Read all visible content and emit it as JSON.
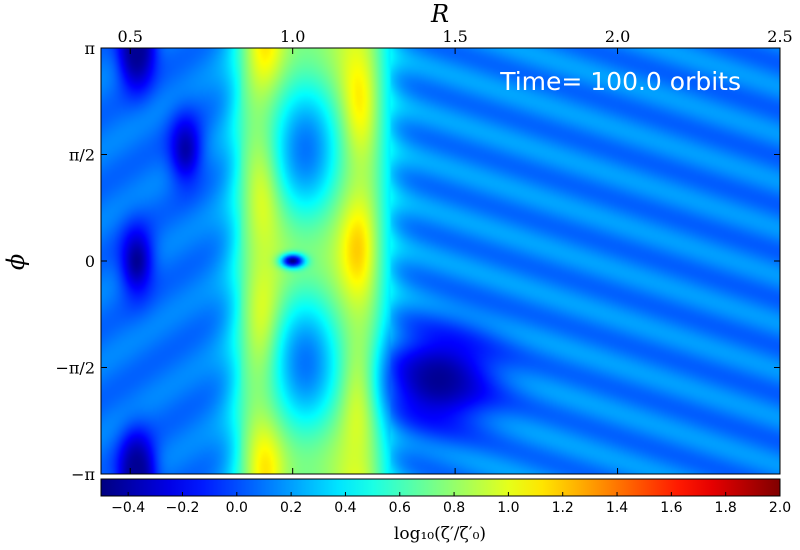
{
  "chart_data": {
    "type": "heatmap",
    "title": "",
    "xlabel": "R",
    "ylabel": "ϕ",
    "xaxis_position": "top",
    "xlim": [
      0.41,
      2.5
    ],
    "ylim": [
      -3.14159,
      3.14159
    ],
    "x_ticks": [
      {
        "value": 0.5,
        "label": "0.5"
      },
      {
        "value": 1.0,
        "label": "1.0"
      },
      {
        "value": 1.5,
        "label": "1.5"
      },
      {
        "value": 2.0,
        "label": "2.0"
      },
      {
        "value": 2.5,
        "label": "2.5"
      }
    ],
    "y_ticks": [
      {
        "value": 3.14159,
        "label": "π"
      },
      {
        "value": 1.5708,
        "label": "π/2"
      },
      {
        "value": 0,
        "label": "0"
      },
      {
        "value": -1.5708,
        "label": "−π/2"
      },
      {
        "value": -3.14159,
        "label": "−π"
      }
    ],
    "annotation": "Time= 100.0 orbits",
    "colorbar": {
      "label": "log₁₀(ζ′/ζ′₀)",
      "colormap": "jet",
      "range": [
        -0.5,
        2.0
      ],
      "orientation": "horizontal",
      "placement": "bottom",
      "ticks": [
        {
          "value": -0.4,
          "label": "−0.4"
        },
        {
          "value": -0.2,
          "label": "−0.2"
        },
        {
          "value": 0.0,
          "label": "0.0"
        },
        {
          "value": 0.2,
          "label": "0.2"
        },
        {
          "value": 0.4,
          "label": "0.4"
        },
        {
          "value": 0.6,
          "label": "0.6"
        },
        {
          "value": 0.8,
          "label": "0.8"
        },
        {
          "value": 1.0,
          "label": "1.0"
        },
        {
          "value": 1.2,
          "label": "1.2"
        },
        {
          "value": 1.4,
          "label": "1.4"
        },
        {
          "value": 1.6,
          "label": "1.6"
        },
        {
          "value": 1.8,
          "label": "1.8"
        },
        {
          "value": 2.0,
          "label": "2.0"
        }
      ]
    },
    "features": {
      "background_level": 0.15,
      "ring": {
        "r_inner": 0.84,
        "r_outer": 1.27,
        "level": 1.05
      },
      "ring_peaks": {
        "r": [
          0.92,
          1.2
        ],
        "level": 1.35
      },
      "vortices": [
        {
          "r": 1.04,
          "phi": 1.65,
          "level": 0.1
        },
        {
          "r": 1.04,
          "phi": -1.5,
          "level": 0.1
        }
      ],
      "planet": {
        "r": 1.0,
        "phi": 0.0,
        "level": -0.5
      },
      "inner_lows": [
        {
          "r": 0.52,
          "phi": 3.05,
          "level": -0.45
        },
        {
          "r": 0.52,
          "phi": 0.0,
          "level": -0.45
        },
        {
          "r": 0.52,
          "phi": -3.05,
          "level": -0.45
        },
        {
          "r": 0.67,
          "phi": 1.65,
          "level": -0.4
        }
      ],
      "wake_low": {
        "r": 1.45,
        "phi": -1.75,
        "level": -0.45
      }
    }
  }
}
